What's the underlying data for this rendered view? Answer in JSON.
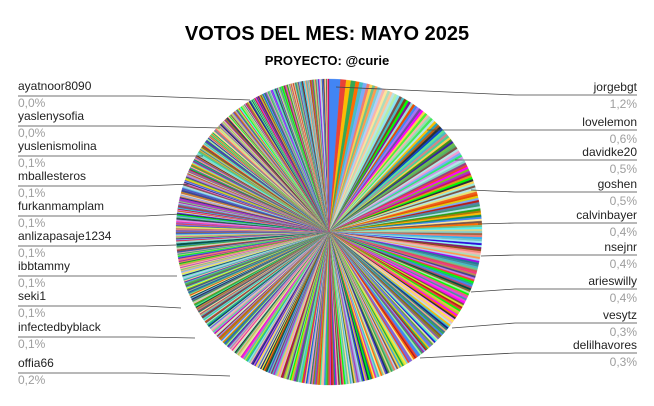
{
  "chart_data": {
    "type": "pie",
    "title": "VOTOS DEL MES: MAYO 2025",
    "subtitle": "PROYECTO: @curie",
    "slice_count": 720,
    "labeled_slices": [
      {
        "name": "jorgebgt",
        "percent_label": "1,2%",
        "value": 1.2
      },
      {
        "name": "lovelemon",
        "percent_label": "0,6%",
        "value": 0.6
      },
      {
        "name": "davidke20",
        "percent_label": "0,5%",
        "value": 0.5
      },
      {
        "name": "goshen",
        "percent_label": "0,5%",
        "value": 0.5
      },
      {
        "name": "calvinbayer",
        "percent_label": "0,4%",
        "value": 0.4
      },
      {
        "name": "nsejnr",
        "percent_label": "0,4%",
        "value": 0.4
      },
      {
        "name": "arieswilly",
        "percent_label": "0,4%",
        "value": 0.4
      },
      {
        "name": "vesytz",
        "percent_label": "0,3%",
        "value": 0.3
      },
      {
        "name": "delilhavores",
        "percent_label": "0,3%",
        "value": 0.3
      },
      {
        "name": "offia66",
        "percent_label": "0,2%",
        "value": 0.2
      },
      {
        "name": "infectedbyblack",
        "percent_label": "0,1%",
        "value": 0.1
      },
      {
        "name": "seki1",
        "percent_label": "0,1%",
        "value": 0.1
      },
      {
        "name": "ibbtammy",
        "percent_label": "0,1%",
        "value": 0.1
      },
      {
        "name": "anlizapasaje1234",
        "percent_label": "0,1%",
        "value": 0.1
      },
      {
        "name": "furkanmamplam",
        "percent_label": "0,1%",
        "value": 0.1
      },
      {
        "name": "mballesteros",
        "percent_label": "0,1%",
        "value": 0.1
      },
      {
        "name": "yuslenismolina",
        "percent_label": "0,1%",
        "value": 0.1
      },
      {
        "name": "yaslenysofia",
        "percent_label": "0,0%",
        "value": 0.0
      },
      {
        "name": "ayatnoor8090",
        "percent_label": "0,0%",
        "value": 0.0
      }
    ],
    "palette": [
      "#4285f4",
      "#ea4335",
      "#fbbc04",
      "#34a853",
      "#ff6d01",
      "#46bdc6",
      "#7baaf7",
      "#f07b72",
      "#fcd04f",
      "#71c287",
      "#ff994d",
      "#7ed1d7",
      "#b3cefb",
      "#f7b4ae",
      "#fde49b",
      "#aedcba",
      "#ffc599",
      "#b5e5e8",
      "#ab30c4",
      "#ff00ff",
      "#00ff00",
      "#1a237e",
      "#b71c1c",
      "#004d40",
      "#e65100",
      "#263238",
      "#9c27b0",
      "#cddc39",
      "#ffeb3b",
      "#795548"
    ],
    "legend": "none"
  }
}
